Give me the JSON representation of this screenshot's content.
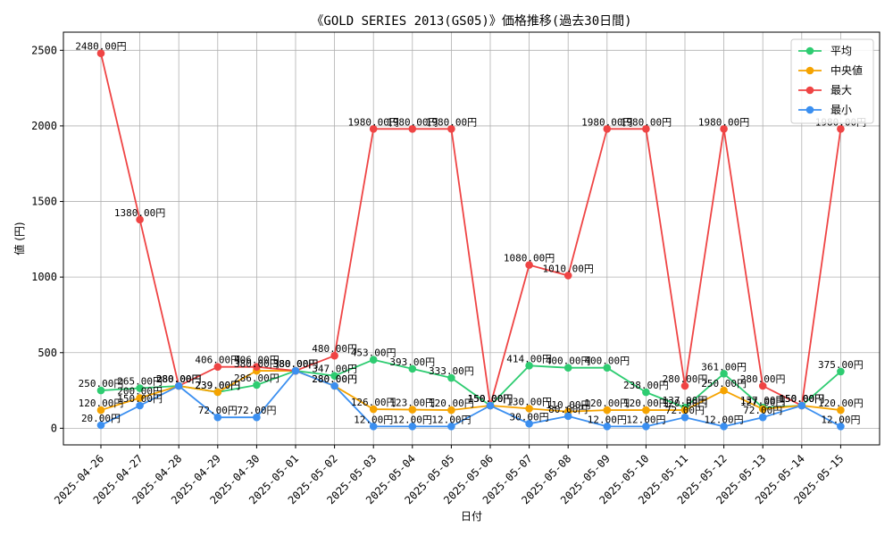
{
  "chart_data": {
    "type": "line",
    "title": "《GOLD SERIES 2013(GS05)》価格推移(過去30日間)",
    "xlabel": "日付",
    "ylabel": "値 (円)",
    "ylim": [
      -110,
      2620
    ],
    "yticks": [
      0,
      500,
      1000,
      1500,
      2000,
      2500
    ],
    "grid": true,
    "legend_position": "top-right",
    "value_suffix": "円",
    "categories": [
      "2025-04-26",
      "2025-04-27",
      "2025-04-28",
      "2025-04-29",
      "2025-04-30",
      "2025-05-01",
      "2025-05-02",
      "2025-05-03",
      "2025-05-04",
      "2025-05-05",
      "2025-05-06",
      "2025-05-07",
      "2025-05-08",
      "2025-05-09",
      "2025-05-10",
      "2025-05-11",
      "2025-05-12",
      "2025-05-13",
      "2025-05-14",
      "2025-05-15"
    ],
    "series": [
      {
        "name": "平均",
        "color": "#2ecc71",
        "values": [
          250,
          265,
          280,
          239,
          286,
          380,
          347,
          453,
          393,
          333,
          150,
          414,
          400,
          400,
          238,
          137,
          361,
          137,
          150,
          375
        ]
      },
      {
        "name": "中央値",
        "color": "#f5a300",
        "values": [
          120,
          200,
          280,
          239,
          380,
          380,
          280,
          126,
          123,
          120,
          150,
          130,
          110,
          120,
          120,
          120,
          250,
          127,
          150,
          120
        ]
      },
      {
        "name": "最大",
        "color": "#ef4444",
        "values": [
          2480,
          1380,
          280,
          406,
          406,
          380,
          480,
          1980,
          1980,
          1980,
          150,
          1080,
          1010,
          1980,
          1980,
          280,
          1980,
          280,
          150,
          1980
        ]
      },
      {
        "name": "最小",
        "color": "#3b8ff0",
        "values": [
          20,
          150,
          280,
          72,
          72,
          380,
          280,
          12,
          12,
          12,
          150,
          30,
          80,
          12,
          12,
          72,
          12,
          72,
          150,
          12
        ]
      }
    ]
  }
}
